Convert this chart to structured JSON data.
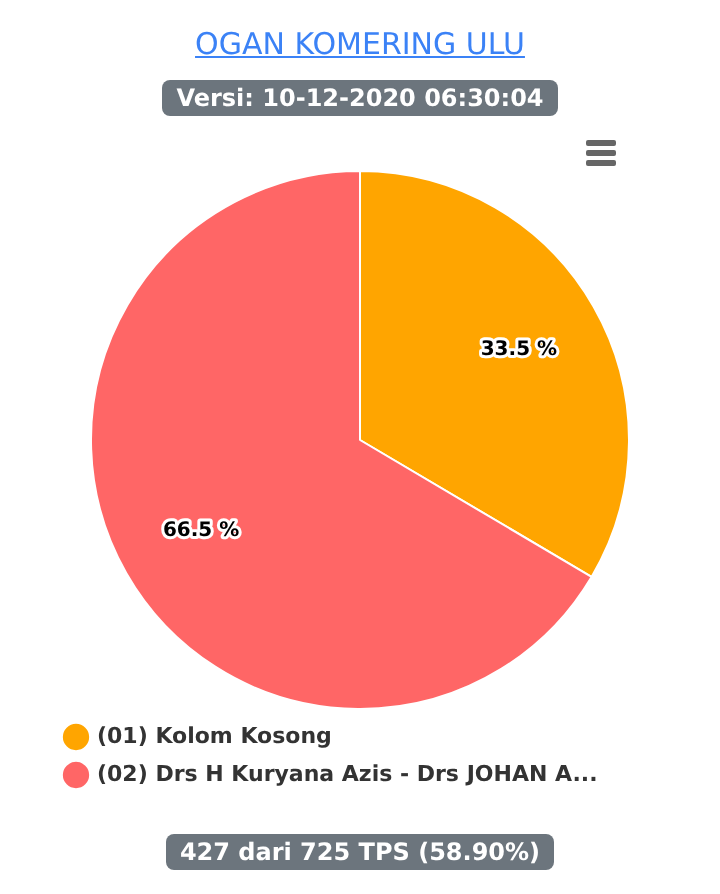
{
  "chart_data": {
    "type": "pie",
    "title": "OGAN KOMERING ULU",
    "subtitle": "Versi: 10-12-2020 06:30:04",
    "categories": [
      "(01) Kolom Kosong",
      "(02) Drs H Kuryana Azis - Drs JOHAN A..."
    ],
    "values": [
      33.5,
      66.5
    ],
    "colors": [
      "#ffa500",
      "#ff6666"
    ],
    "value_labels": [
      "33.5 %",
      "66.5 %"
    ],
    "legend": "bottom",
    "annotations": [
      "427 dari 725 TPS (58.90%)"
    ]
  }
}
